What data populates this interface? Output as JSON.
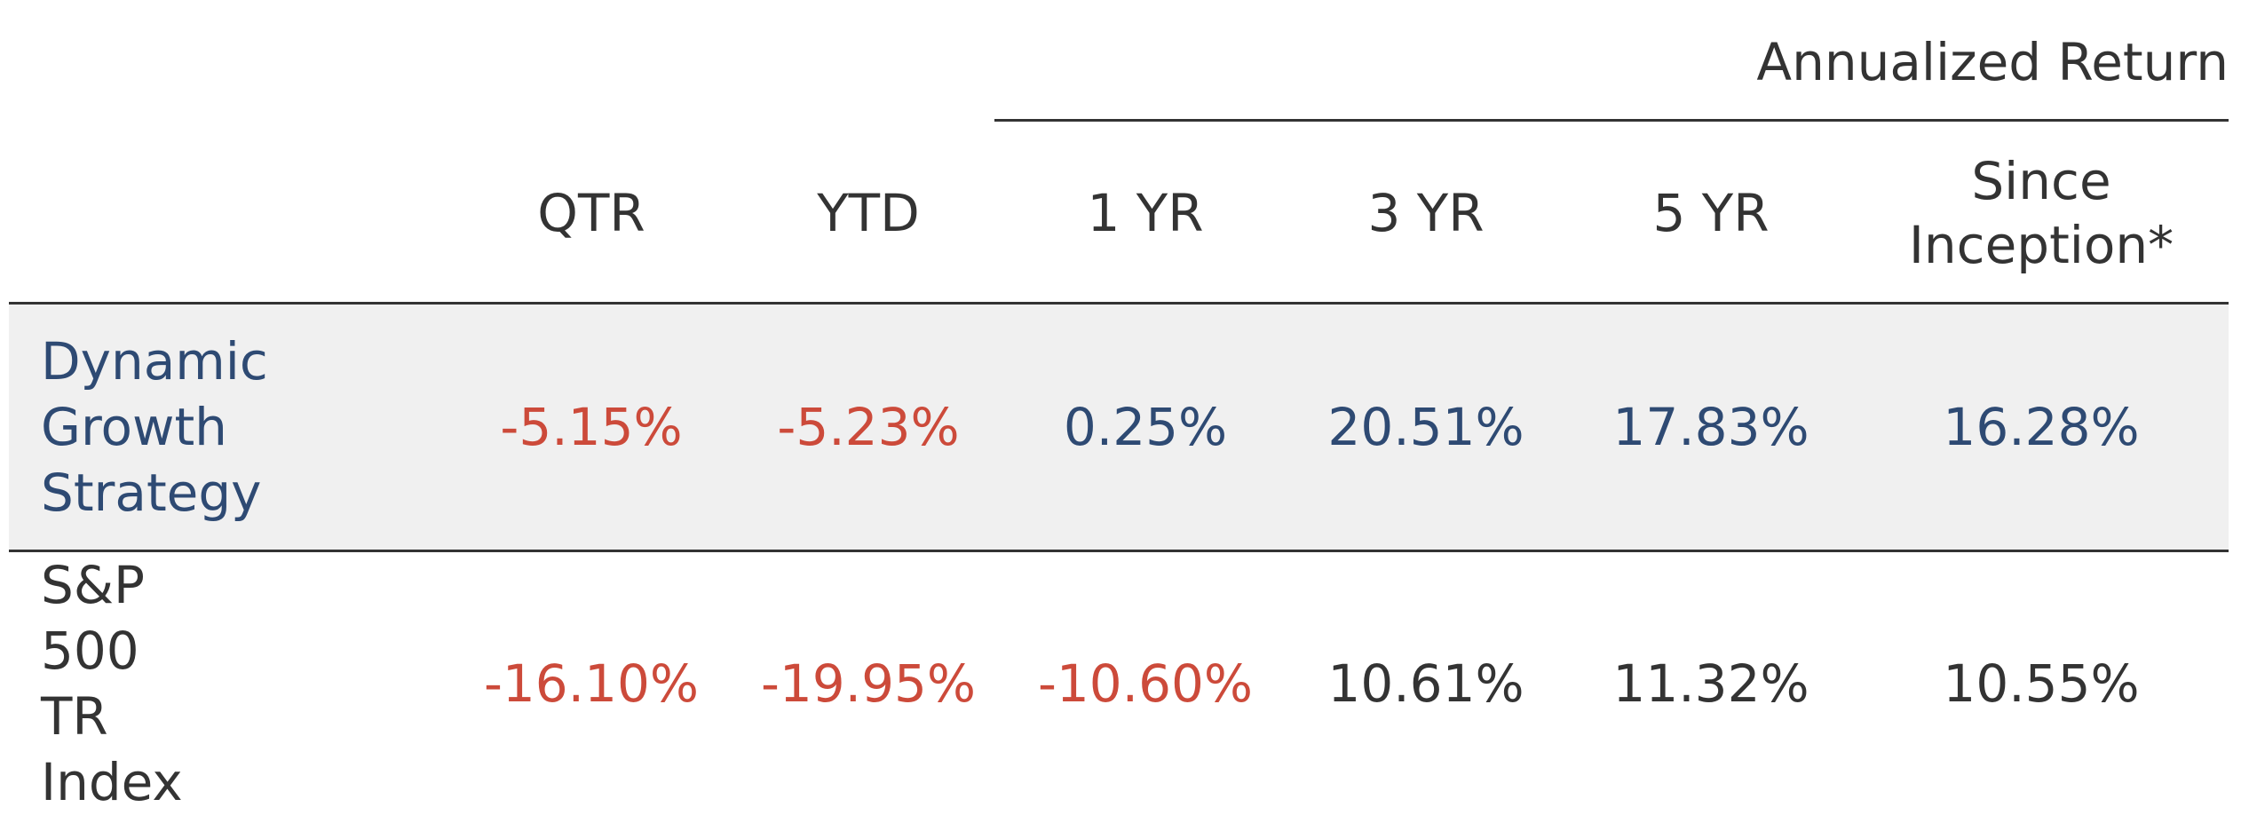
{
  "table": {
    "group_header": "Annualized Return",
    "columns": [
      "",
      "QTR",
      "YTD",
      "1 YR",
      "3 YR",
      "5 YR",
      "Since Inception*"
    ],
    "rows": [
      {
        "label": "Dynamic Growth Strategy",
        "values": [
          "-5.15%",
          "-5.23%",
          "0.25%",
          "20.51%",
          "17.83%",
          "16.28%"
        ]
      },
      {
        "label": "S&P 500 TR Index",
        "values": [
          "-16.10%",
          "-19.95%",
          "-10.60%",
          "10.61%",
          "11.32%",
          "10.55%"
        ]
      }
    ]
  },
  "colors": {
    "negative": "#cc4a3a",
    "strategy_text": "#2e4a73",
    "default_text": "#333333",
    "highlight_row_bg": "#f0f0f0"
  }
}
